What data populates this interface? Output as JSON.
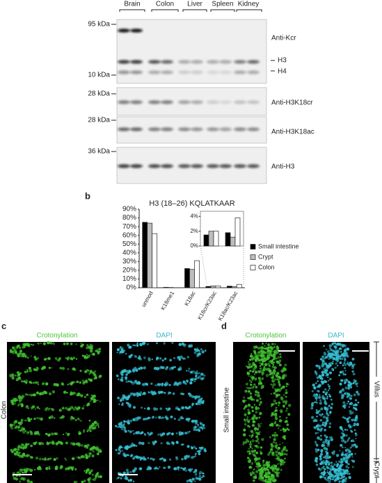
{
  "panel_a": {
    "lanes": [
      "Brain",
      "Colon",
      "Liver",
      "Spleen",
      "Kidney"
    ],
    "markers": [
      "95 kDa",
      "10 kDa",
      "28 kDa",
      "28 kDa",
      "36 kDa"
    ],
    "blot_labels": [
      "Anti-Kcr",
      "H3",
      "H4",
      "Anti-H3K18cr",
      "Anti-H3K18ac",
      "Anti-H3"
    ]
  },
  "panel_b": {
    "label": "b",
    "chart_data": {
      "type": "bar",
      "title": "H3 (18–26) KQLATKAAR",
      "categories": [
        "unmod",
        "K18me1",
        "K18ac",
        "K18cr/K23ac",
        "K18ac/K23ac"
      ],
      "series": [
        {
          "name": "Small intestine",
          "color": "#000000",
          "values": [
            75,
            0.5,
            22,
            1.5,
            1.8
          ]
        },
        {
          "name": "Crypt",
          "color": "#bdbdbd",
          "values": [
            74,
            0.3,
            21,
            2,
            1.2
          ]
        },
        {
          "name": "Colon",
          "color": "#ffffff",
          "values": [
            62,
            0,
            31,
            2,
            3.8
          ]
        }
      ],
      "ylim": [
        0,
        90
      ],
      "yticks": [
        {
          "value": 0,
          "label": "0%"
        },
        {
          "value": 10,
          "label": "10%"
        },
        {
          "value": 20,
          "label": "20%"
        },
        {
          "value": 30,
          "label": "30%"
        },
        {
          "value": 40,
          "label": "40%"
        },
        {
          "value": 50,
          "label": "50%"
        },
        {
          "value": 60,
          "label": "60%"
        },
        {
          "value": 70,
          "label": "70%"
        },
        {
          "value": 80,
          "label": "80%"
        },
        {
          "value": 90,
          "label": "90%"
        }
      ],
      "legend": "right",
      "inset": {
        "ylim": [
          0,
          4.5
        ],
        "yticks": [
          {
            "value": 0,
            "label": "0%"
          },
          {
            "value": 2,
            "label": "2%"
          },
          {
            "value": 4,
            "label": "4%"
          }
        ]
      }
    }
  },
  "panel_c": {
    "label": "c",
    "channels": [
      "Crotonylation",
      "DAPI"
    ],
    "tissue": "Colon"
  },
  "panel_d": {
    "label": "d",
    "channels": [
      "Crotonylation",
      "DAPI"
    ],
    "tissue": "Small intestine",
    "regions": [
      "Villus",
      "Crypt"
    ]
  }
}
